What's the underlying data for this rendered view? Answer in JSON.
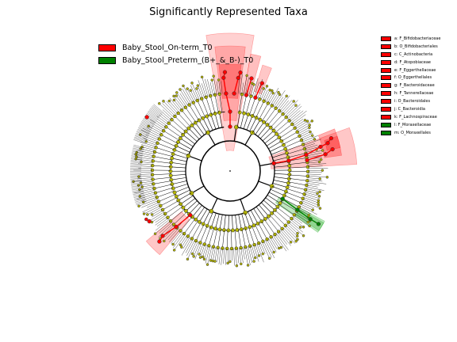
{
  "title": "Significantly Represented Taxa",
  "colors": {
    "group1": "#ff0000",
    "group2": "#008000",
    "node_default": "#b5b500",
    "shade_red": "#ff0000",
    "shade_green": "#00a000"
  },
  "groups": [
    {
      "label": "Baby_Stool_On-term_T0",
      "color": "#ff0000"
    },
    {
      "label": "Baby_Stool_Preterm_(B+_&_B-)_T0",
      "color": "#008000"
    }
  ],
  "taxa_legend": [
    {
      "text": "a: F_Bifidobacteriaceae",
      "color": "#ff0000"
    },
    {
      "text": "b: O_Bifidobacteriales",
      "color": "#ff0000"
    },
    {
      "text": "c: C_Actinobacteria",
      "color": "#ff0000"
    },
    {
      "text": "d: F_Atopobiaceae",
      "color": "#ff0000"
    },
    {
      "text": "e: F_Eggerthellaceae",
      "color": "#ff0000"
    },
    {
      "text": "f: O_Eggerthellales",
      "color": "#ff0000"
    },
    {
      "text": "g: F_Bacteroidaceae",
      "color": "#ff0000"
    },
    {
      "text": "h: F_Tannerellaceae",
      "color": "#ff0000"
    },
    {
      "text": "i: O_Bacteroidales",
      "color": "#ff0000"
    },
    {
      "text": "j: C_Bacteroidia",
      "color": "#ff0000"
    },
    {
      "text": "k: F_Lachnospiraceae",
      "color": "#ff0000"
    },
    {
      "text": "l: F_Moraxellaceae",
      "color": "#008000"
    },
    {
      "text": "m: O_Moraxellales",
      "color": "#008000"
    }
  ],
  "sector_labels": [
    "P_Bacteroidetes",
    "j",
    "i",
    "h",
    "g",
    "c",
    "b",
    "a",
    "d",
    "e",
    "f",
    "k",
    "l",
    "m"
  ]
}
